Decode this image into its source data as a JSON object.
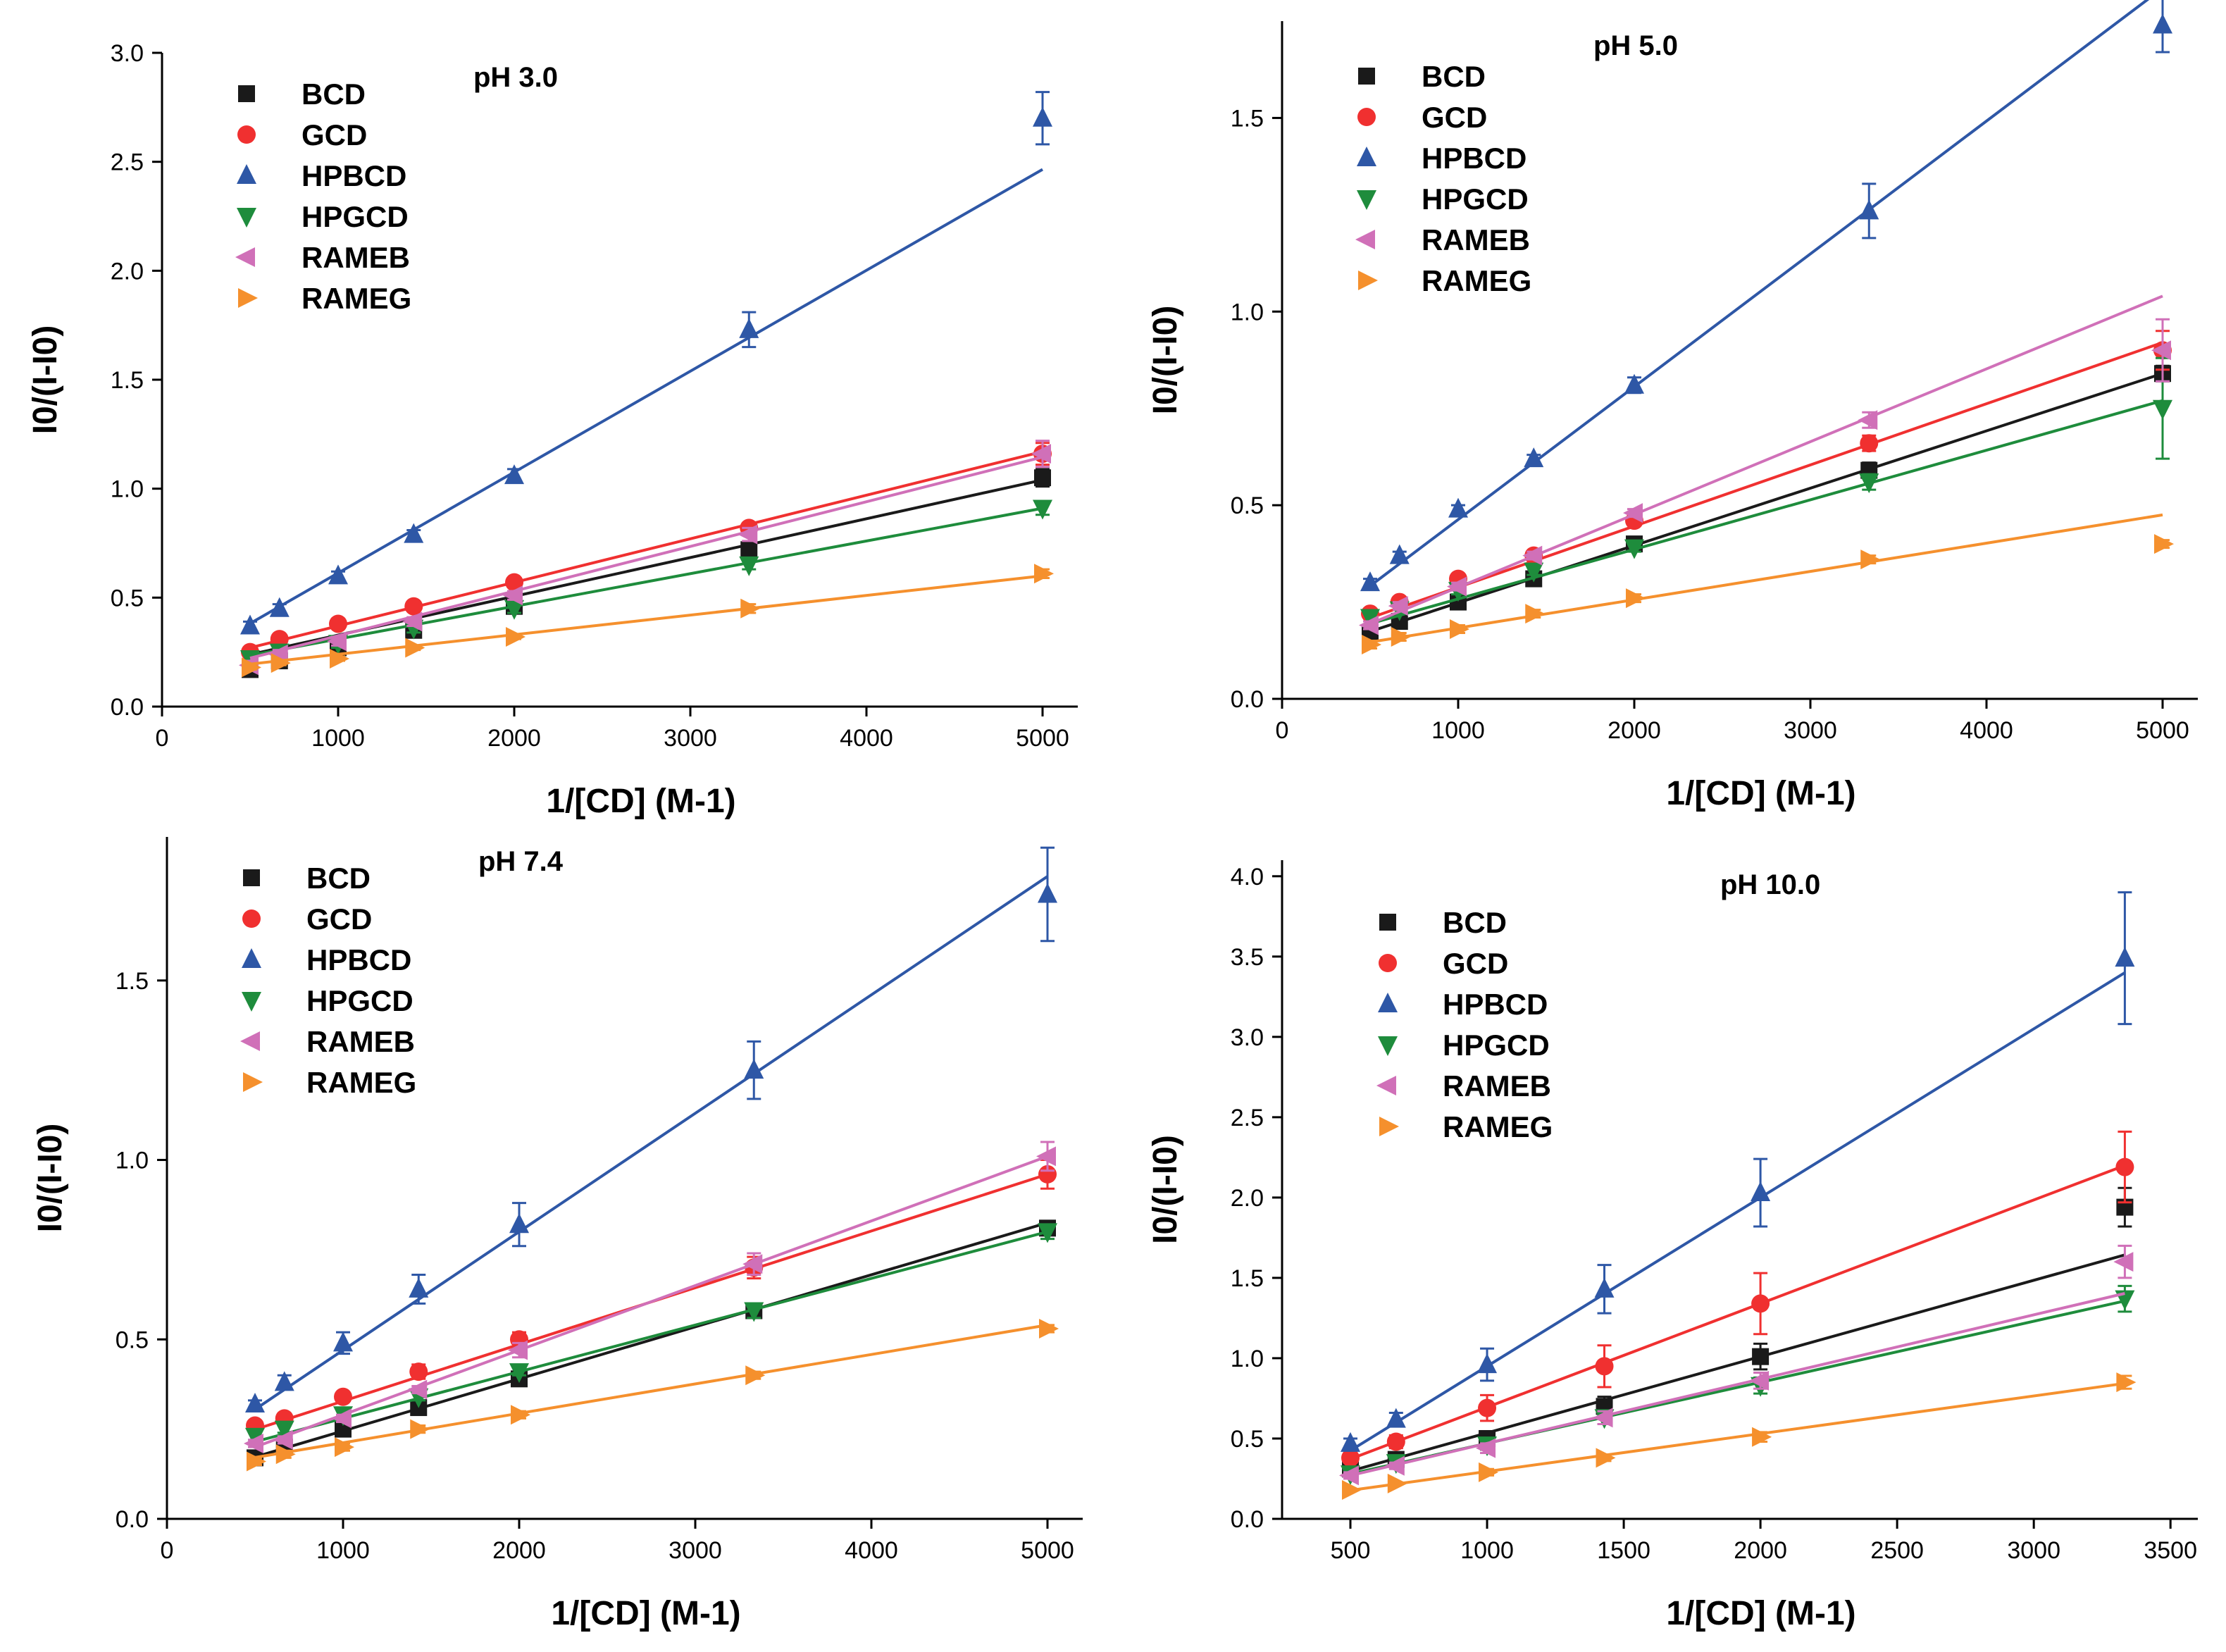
{
  "chart_data": [
    {
      "type": "scatter",
      "title": "pH 3.0",
      "xlabel": "1/[CD] (M-1)",
      "ylabel": "I0/(I-I0)",
      "xlim": [
        0,
        5200
      ],
      "ylim": [
        0,
        3.0
      ],
      "xticks": [
        0,
        1000,
        2000,
        3000,
        4000,
        5000
      ],
      "yticks": [
        0.0,
        0.5,
        1.0,
        1.5,
        2.0,
        2.5,
        3.0
      ],
      "xtick_labels": [
        "0",
        "1000",
        "2000",
        "3000",
        "4000",
        "5000"
      ],
      "ytick_labels": [
        "0.0",
        "0.5",
        "1.0",
        "1.5",
        "2.0",
        "2.5",
        "3.0"
      ],
      "legend_position": "top-left",
      "series": [
        {
          "name": "BCD",
          "color": "#1a1a1a",
          "marker": "square",
          "x": [
            500,
            667,
            1000,
            1429,
            2000,
            3333,
            5000
          ],
          "y": [
            0.17,
            0.21,
            0.27,
            0.35,
            0.46,
            0.72,
            1.05
          ],
          "yerr": [
            0.02,
            0.02,
            0.02,
            0.02,
            0.02,
            0.03,
            0.04
          ],
          "fit": [
            0.15,
            0.000178
          ]
        },
        {
          "name": "GCD",
          "color": "#f03030",
          "marker": "circle",
          "x": [
            500,
            667,
            1000,
            1429,
            2000,
            3333,
            5000
          ],
          "y": [
            0.25,
            0.31,
            0.38,
            0.46,
            0.57,
            0.82,
            1.16
          ],
          "yerr": [
            0.02,
            0.02,
            0.02,
            0.02,
            0.02,
            0.02,
            0.05
          ],
          "fit": [
            0.17,
            0.0002
          ]
        },
        {
          "name": "HPBCD",
          "color": "#2e57a6",
          "marker": "triangle-up",
          "x": [
            500,
            667,
            1000,
            1429,
            2000,
            3333,
            5000
          ],
          "y": [
            0.37,
            0.45,
            0.6,
            0.79,
            1.06,
            1.73,
            2.7
          ],
          "yerr": [
            0.02,
            0.02,
            0.02,
            0.02,
            0.03,
            0.08,
            0.12
          ],
          "fit": [
            0.15,
            0.000463
          ]
        },
        {
          "name": "HPGCD",
          "color": "#1e8c3c",
          "marker": "triangle-down",
          "x": [
            500,
            667,
            1000,
            1429,
            2000,
            3333,
            5000
          ],
          "y": [
            0.22,
            0.25,
            0.29,
            0.36,
            0.45,
            0.65,
            0.91
          ],
          "yerr": [
            0.02,
            0.02,
            0.02,
            0.02,
            0.02,
            0.02,
            0.03
          ],
          "fit": [
            0.16,
            0.00015
          ]
        },
        {
          "name": "RAMEB",
          "color": "#d070b8",
          "marker": "triangle-left",
          "x": [
            500,
            667,
            1000,
            1429,
            2000,
            3333,
            5000
          ],
          "y": [
            0.19,
            0.24,
            0.3,
            0.39,
            0.51,
            0.79,
            1.16
          ],
          "yerr": [
            0.02,
            0.02,
            0.02,
            0.02,
            0.02,
            0.03,
            0.06
          ],
          "fit": [
            0.12,
            0.000205
          ]
        },
        {
          "name": "RAMEG",
          "color": "#f5902d",
          "marker": "triangle-right",
          "x": [
            500,
            667,
            1000,
            1429,
            2000,
            3333,
            5000
          ],
          "y": [
            0.18,
            0.2,
            0.22,
            0.27,
            0.32,
            0.45,
            0.61
          ],
          "yerr": [
            0.01,
            0.01,
            0.01,
            0.01,
            0.01,
            0.02,
            0.02
          ],
          "fit": [
            0.15,
            9e-05
          ]
        }
      ]
    },
    {
      "type": "scatter",
      "title": "pH 5.0",
      "xlabel": "1/[CD] (M-1)",
      "ylabel": "I0/(I-I0)",
      "xlim": [
        0,
        5200
      ],
      "ylim": [
        0,
        1.75
      ],
      "xticks": [
        0,
        1000,
        2000,
        3000,
        4000,
        5000
      ],
      "yticks": [
        0.0,
        0.5,
        1.0,
        1.5
      ],
      "xtick_labels": [
        "0",
        "1000",
        "2000",
        "3000",
        "4000",
        "5000"
      ],
      "ytick_labels": [
        "0.0",
        "0.5",
        "1.0",
        "1.5"
      ],
      "legend_position": "top-left",
      "series": [
        {
          "name": "BCD",
          "color": "#1a1a1a",
          "marker": "square",
          "x": [
            500,
            667,
            1000,
            1429,
            2000,
            3333,
            5000
          ],
          "y": [
            0.17,
            0.2,
            0.25,
            0.31,
            0.4,
            0.59,
            0.84
          ],
          "yerr": [
            0.01,
            0.01,
            0.01,
            0.01,
            0.01,
            0.02,
            0.02
          ],
          "fit": [
            0.1,
            0.000148
          ]
        },
        {
          "name": "GCD",
          "color": "#f03030",
          "marker": "circle",
          "x": [
            500,
            667,
            1000,
            1429,
            2000,
            3333,
            5000
          ],
          "y": [
            0.22,
            0.25,
            0.31,
            0.37,
            0.46,
            0.66,
            0.9
          ],
          "yerr": [
            0.01,
            0.01,
            0.01,
            0.01,
            0.01,
            0.02,
            0.05
          ],
          "fit": [
            0.13,
            0.000158
          ]
        },
        {
          "name": "HPBCD",
          "color": "#2e57a6",
          "marker": "triangle-up",
          "x": [
            500,
            667,
            1000,
            1429,
            2000,
            3333,
            5000
          ],
          "y": [
            0.3,
            0.37,
            0.49,
            0.62,
            0.81,
            1.26,
            1.74
          ],
          "yerr": [
            0.01,
            0.01,
            0.01,
            0.01,
            0.02,
            0.07,
            0.07
          ],
          "fit": [
            0.12,
            0.000343
          ]
        },
        {
          "name": "HPGCD",
          "color": "#1e8c3c",
          "marker": "triangle-down",
          "x": [
            500,
            667,
            1000,
            1429,
            2000,
            3333,
            5000
          ],
          "y": [
            0.21,
            0.23,
            0.28,
            0.33,
            0.39,
            0.56,
            0.75
          ],
          "yerr": [
            0.01,
            0.01,
            0.01,
            0.01,
            0.01,
            0.02,
            0.13
          ],
          "fit": [
            0.13,
            0.000128
          ]
        },
        {
          "name": "RAMEB",
          "color": "#d070b8",
          "marker": "triangle-left",
          "x": [
            500,
            667,
            1000,
            1429,
            2000,
            3333,
            5000
          ],
          "y": [
            0.19,
            0.24,
            0.29,
            0.37,
            0.48,
            0.72,
            0.9
          ],
          "yerr": [
            0.01,
            0.01,
            0.01,
            0.01,
            0.01,
            0.02,
            0.08
          ],
          "fit": [
            0.1,
            0.000188
          ]
        },
        {
          "name": "RAMEG",
          "color": "#f5902d",
          "marker": "triangle-right",
          "x": [
            500,
            667,
            1000,
            1429,
            2000,
            3333,
            5000
          ],
          "y": [
            0.14,
            0.16,
            0.18,
            0.22,
            0.26,
            0.36,
            0.4
          ],
          "yerr": [
            0.01,
            0.01,
            0.01,
            0.01,
            0.01,
            0.01,
            0.01
          ],
          "fit": [
            0.11,
            7.3e-05
          ]
        }
      ]
    },
    {
      "type": "scatter",
      "title": "pH 7.4",
      "xlabel": "1/[CD] (M-1)",
      "ylabel": "I0/(I-I0)",
      "xlim": [
        0,
        5200
      ],
      "ylim": [
        0,
        1.9
      ],
      "xticks": [
        0,
        1000,
        2000,
        3000,
        4000,
        5000
      ],
      "yticks": [
        0.0,
        0.5,
        1.0,
        1.5
      ],
      "xtick_labels": [
        "0",
        "1000",
        "2000",
        "3000",
        "4000",
        "5000"
      ],
      "ytick_labels": [
        "0.0",
        "0.5",
        "1.0",
        "1.5"
      ],
      "legend_position": "top-left",
      "series": [
        {
          "name": "BCD",
          "color": "#1a1a1a",
          "marker": "square",
          "x": [
            500,
            667,
            1000,
            1429,
            2000,
            3333,
            5000
          ],
          "y": [
            0.17,
            0.2,
            0.25,
            0.31,
            0.39,
            0.58,
            0.81
          ],
          "yerr": [
            0.01,
            0.01,
            0.01,
            0.01,
            0.01,
            0.02,
            0.02
          ],
          "fit": [
            0.1,
            0.000145
          ]
        },
        {
          "name": "GCD",
          "color": "#f03030",
          "marker": "circle",
          "x": [
            500,
            667,
            1000,
            1429,
            2000,
            3333,
            5000
          ],
          "y": [
            0.26,
            0.28,
            0.34,
            0.41,
            0.5,
            0.7,
            0.96
          ],
          "yerr": [
            0.01,
            0.01,
            0.01,
            0.02,
            0.02,
            0.03,
            0.04
          ],
          "fit": [
            0.17,
            0.000158
          ]
        },
        {
          "name": "HPBCD",
          "color": "#2e57a6",
          "marker": "triangle-up",
          "x": [
            500,
            667,
            1000,
            1429,
            2000,
            3333,
            5000
          ],
          "y": [
            0.32,
            0.38,
            0.49,
            0.64,
            0.82,
            1.25,
            1.74
          ],
          "yerr": [
            0.01,
            0.02,
            0.03,
            0.04,
            0.06,
            0.08,
            0.13
          ],
          "fit": [
            0.14,
            0.00033
          ]
        },
        {
          "name": "HPGCD",
          "color": "#1e8c3c",
          "marker": "triangle-down",
          "x": [
            500,
            667,
            1000,
            1429,
            2000,
            3333,
            5000
          ],
          "y": [
            0.23,
            0.25,
            0.29,
            0.34,
            0.41,
            0.58,
            0.8
          ],
          "yerr": [
            0.01,
            0.01,
            0.01,
            0.01,
            0.01,
            0.02,
            0.02
          ],
          "fit": [
            0.15,
            0.00013
          ]
        },
        {
          "name": "RAMEB",
          "color": "#d070b8",
          "marker": "triangle-left",
          "x": [
            500,
            667,
            1000,
            1429,
            2000,
            3333,
            5000
          ],
          "y": [
            0.21,
            0.22,
            0.28,
            0.36,
            0.47,
            0.71,
            1.01
          ],
          "yerr": [
            0.01,
            0.01,
            0.01,
            0.01,
            0.02,
            0.03,
            0.04
          ],
          "fit": [
            0.11,
            0.00018
          ]
        },
        {
          "name": "RAMEG",
          "color": "#f5902d",
          "marker": "triangle-right",
          "x": [
            500,
            667,
            1000,
            1429,
            2000,
            3333,
            5000
          ],
          "y": [
            0.16,
            0.18,
            0.2,
            0.25,
            0.29,
            0.4,
            0.53
          ],
          "yerr": [
            0.01,
            0.01,
            0.01,
            0.01,
            0.01,
            0.01,
            0.01
          ],
          "fit": [
            0.13,
            8.2e-05
          ]
        }
      ]
    },
    {
      "type": "scatter",
      "title": "pH 10.0",
      "xlabel": "1/[CD] (M-1)",
      "ylabel": "I0/(I-I0)",
      "xlim": [
        250,
        3600
      ],
      "ylim": [
        0,
        4.1
      ],
      "xticks": [
        500,
        1000,
        1500,
        2000,
        2500,
        3000,
        3500
      ],
      "yticks": [
        0.0,
        0.5,
        1.0,
        1.5,
        2.0,
        2.5,
        3.0,
        3.5,
        4.0
      ],
      "xtick_labels": [
        "500",
        "1000",
        "1500",
        "2000",
        "2500",
        "3000",
        "3500"
      ],
      "ytick_labels": [
        "0.0",
        "0.5",
        "1.0",
        "1.5",
        "2.0",
        "2.5",
        "3.0",
        "3.5",
        "4.0"
      ],
      "legend_position": "top-left",
      "series": [
        {
          "name": "BCD",
          "color": "#1a1a1a",
          "marker": "square",
          "x": [
            500,
            667,
            1000,
            1429,
            2000,
            3333
          ],
          "y": [
            0.31,
            0.37,
            0.5,
            0.7,
            1.01,
            1.94
          ],
          "yerr": [
            0.02,
            0.03,
            0.04,
            0.06,
            0.08,
            0.12
          ],
          "fit": [
            0.06,
            0.000475
          ]
        },
        {
          "name": "GCD",
          "color": "#f03030",
          "marker": "circle",
          "x": [
            500,
            667,
            1000,
            1429,
            2000,
            3333
          ],
          "y": [
            0.38,
            0.48,
            0.69,
            0.95,
            1.34,
            2.19
          ],
          "yerr": [
            0.03,
            0.04,
            0.08,
            0.13,
            0.19,
            0.22
          ],
          "fit": [
            0.05,
            0.000645
          ]
        },
        {
          "name": "HPBCD",
          "color": "#2e57a6",
          "marker": "triangle-up",
          "x": [
            500,
            667,
            1000,
            1429,
            2000,
            3333
          ],
          "y": [
            0.47,
            0.62,
            0.96,
            1.43,
            2.03,
            3.49
          ],
          "yerr": [
            0.03,
            0.04,
            0.1,
            0.15,
            0.21,
            0.41
          ],
          "fit": [
            -0.1,
            0.00105
          ]
        },
        {
          "name": "HPGCD",
          "color": "#1e8c3c",
          "marker": "triangle-down",
          "x": [
            500,
            667,
            1000,
            1429,
            2000,
            3333
          ],
          "y": [
            0.28,
            0.35,
            0.46,
            0.63,
            0.83,
            1.37
          ],
          "yerr": [
            0.02,
            0.02,
            0.03,
            0.04,
            0.05,
            0.08
          ],
          "fit": [
            0.09,
            0.00038
          ]
        },
        {
          "name": "RAMEB",
          "color": "#d070b8",
          "marker": "triangle-left",
          "x": [
            500,
            667,
            1000,
            1429,
            2000,
            3333
          ],
          "y": [
            0.27,
            0.33,
            0.44,
            0.63,
            0.86,
            1.6
          ],
          "yerr": [
            0.02,
            0.02,
            0.03,
            0.04,
            0.05,
            0.1
          ],
          "fit": [
            0.07,
            0.0004
          ]
        },
        {
          "name": "RAMEG",
          "color": "#f5902d",
          "marker": "triangle-right",
          "x": [
            500,
            667,
            1000,
            1429,
            2000,
            3333
          ],
          "y": [
            0.18,
            0.22,
            0.29,
            0.38,
            0.51,
            0.85
          ],
          "yerr": [
            0.01,
            0.01,
            0.02,
            0.02,
            0.03,
            0.04
          ],
          "fit": [
            0.06,
            0.000235
          ]
        }
      ]
    }
  ]
}
